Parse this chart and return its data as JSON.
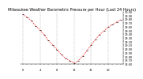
{
  "title": "Milwaukee Weather Barometric Pressure per Hour (Last 24 Hours)",
  "hours": [
    0,
    1,
    2,
    3,
    4,
    5,
    6,
    7,
    8,
    9,
    10,
    11,
    12,
    13,
    14,
    15,
    16,
    17,
    18,
    19,
    20,
    21,
    22,
    23
  ],
  "pressure": [
    29.92,
    29.85,
    29.75,
    29.62,
    29.5,
    29.38,
    29.22,
    29.1,
    28.98,
    28.85,
    28.75,
    28.68,
    28.62,
    28.68,
    28.8,
    28.95,
    29.1,
    29.25,
    29.38,
    29.48,
    29.58,
    29.65,
    29.72,
    29.78
  ],
  "line_color": "#ff0000",
  "marker_color": "#000000",
  "bg_color": "#ffffff",
  "grid_color": "#808080",
  "ylim_min": 28.6,
  "ylim_max": 30.0,
  "ytick_step": 0.1,
  "title_fontsize": 3.5,
  "tick_fontsize": 2.5,
  "xlabel_fontsize": 2.5,
  "grid_hours": [
    0,
    4,
    8,
    12,
    16,
    20
  ]
}
